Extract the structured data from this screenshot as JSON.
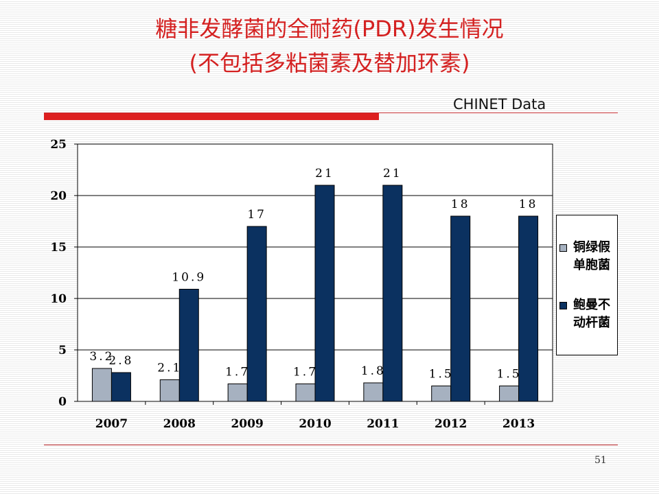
{
  "slide": {
    "title_line1": "糖非发酵菌的全耐药(PDR)发生情况",
    "title_line2": "(不包括多粘菌素及替加环素)",
    "source_label": "CHINET Data",
    "page_number": "51"
  },
  "colors": {
    "title": "#d42020",
    "rule": "#dd1f1f",
    "series_1": "#a6b1c0",
    "series_2": "#0b3160"
  },
  "chart_data": {
    "type": "bar",
    "categories": [
      "2007",
      "2008",
      "2009",
      "2010",
      "2011",
      "2012",
      "2013"
    ],
    "series": [
      {
        "name": "铜绿假单胞菌",
        "values": [
          3.2,
          2.1,
          1.7,
          1.7,
          1.8,
          1.5,
          1.5
        ],
        "labels": [
          "3.2",
          "2.1",
          "1.7",
          "1.7",
          "1.8",
          "1.5",
          "1.5"
        ],
        "color": "#a6b1c0"
      },
      {
        "name": "鲍曼不动杆菌",
        "values": [
          2.8,
          10.9,
          17,
          21,
          21,
          18,
          18
        ],
        "labels": [
          "2.8",
          "10.9",
          "17",
          "21",
          "21",
          "18",
          "18"
        ],
        "color": "#0b3160"
      }
    ],
    "ylim": [
      0,
      25
    ],
    "yticks": [
      "0",
      "5",
      "10",
      "15",
      "20",
      "25"
    ],
    "grid": true,
    "legend": "right"
  },
  "legend": {
    "items": [
      {
        "line1": "铜绿假",
        "line2": "单胞菌",
        "color": "#a6b1c0"
      },
      {
        "line1": "鲍曼不",
        "line2": "动杆菌",
        "color": "#0b3160"
      }
    ]
  }
}
